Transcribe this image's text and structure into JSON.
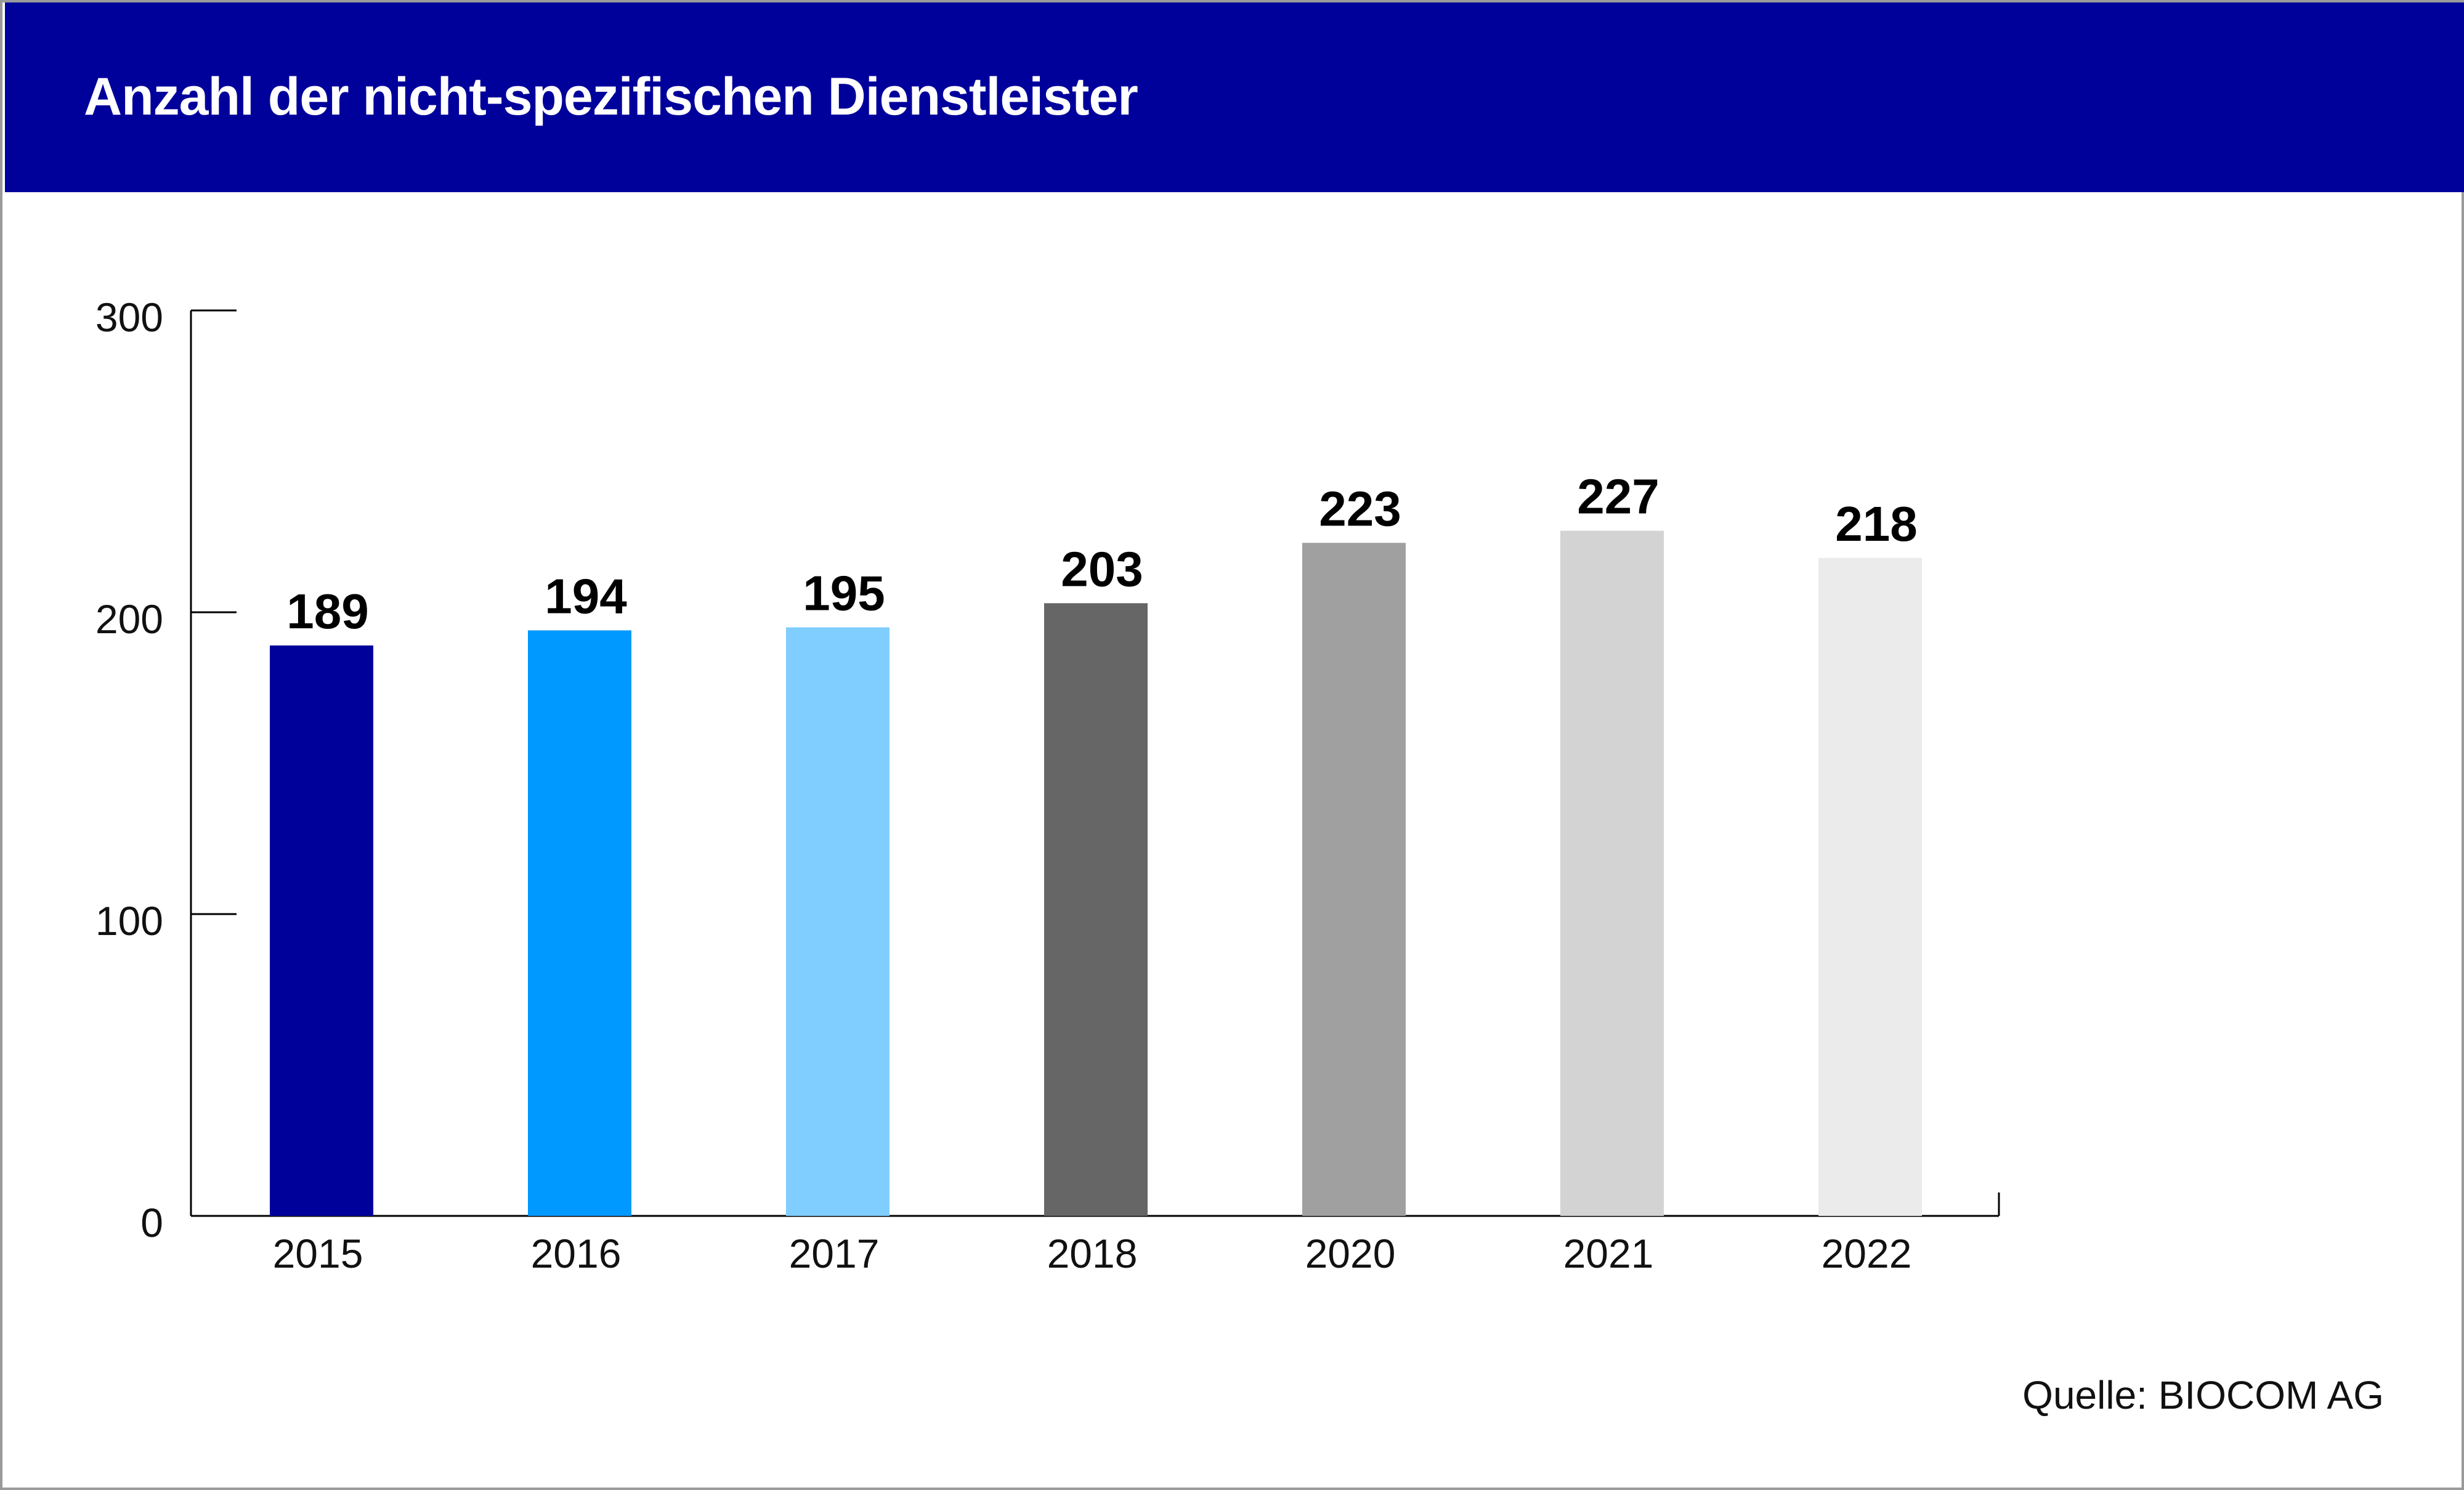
{
  "header": {
    "title": "Anzahl der nicht-spezifischen Dienstleister",
    "background_color": "#00009b",
    "title_color": "#ffffff"
  },
  "source": "Quelle: BIOCOM AG",
  "chart_data": {
    "type": "bar",
    "title": "Anzahl der nicht-spezifischen Dienstleister",
    "xlabel": "",
    "ylabel": "",
    "categories": [
      "2015",
      "2016",
      "2017",
      "2018",
      "2020",
      "2021",
      "2022"
    ],
    "values": [
      189,
      194,
      195,
      203,
      223,
      227,
      218
    ],
    "data_labels": [
      "189",
      "194",
      "195",
      "203",
      "223",
      "227",
      "218"
    ],
    "bar_colors": [
      "#00009b",
      "#0099ff",
      "#80ceff",
      "#666666",
      "#a0a0a0",
      "#d3d3d3",
      "#ebebeb"
    ],
    "ylim": [
      0,
      300
    ],
    "yticks": [
      0,
      100,
      200,
      300
    ],
    "ytick_labels": [
      "0",
      "100",
      "200",
      "300"
    ],
    "grid": false,
    "legend": "none"
  }
}
